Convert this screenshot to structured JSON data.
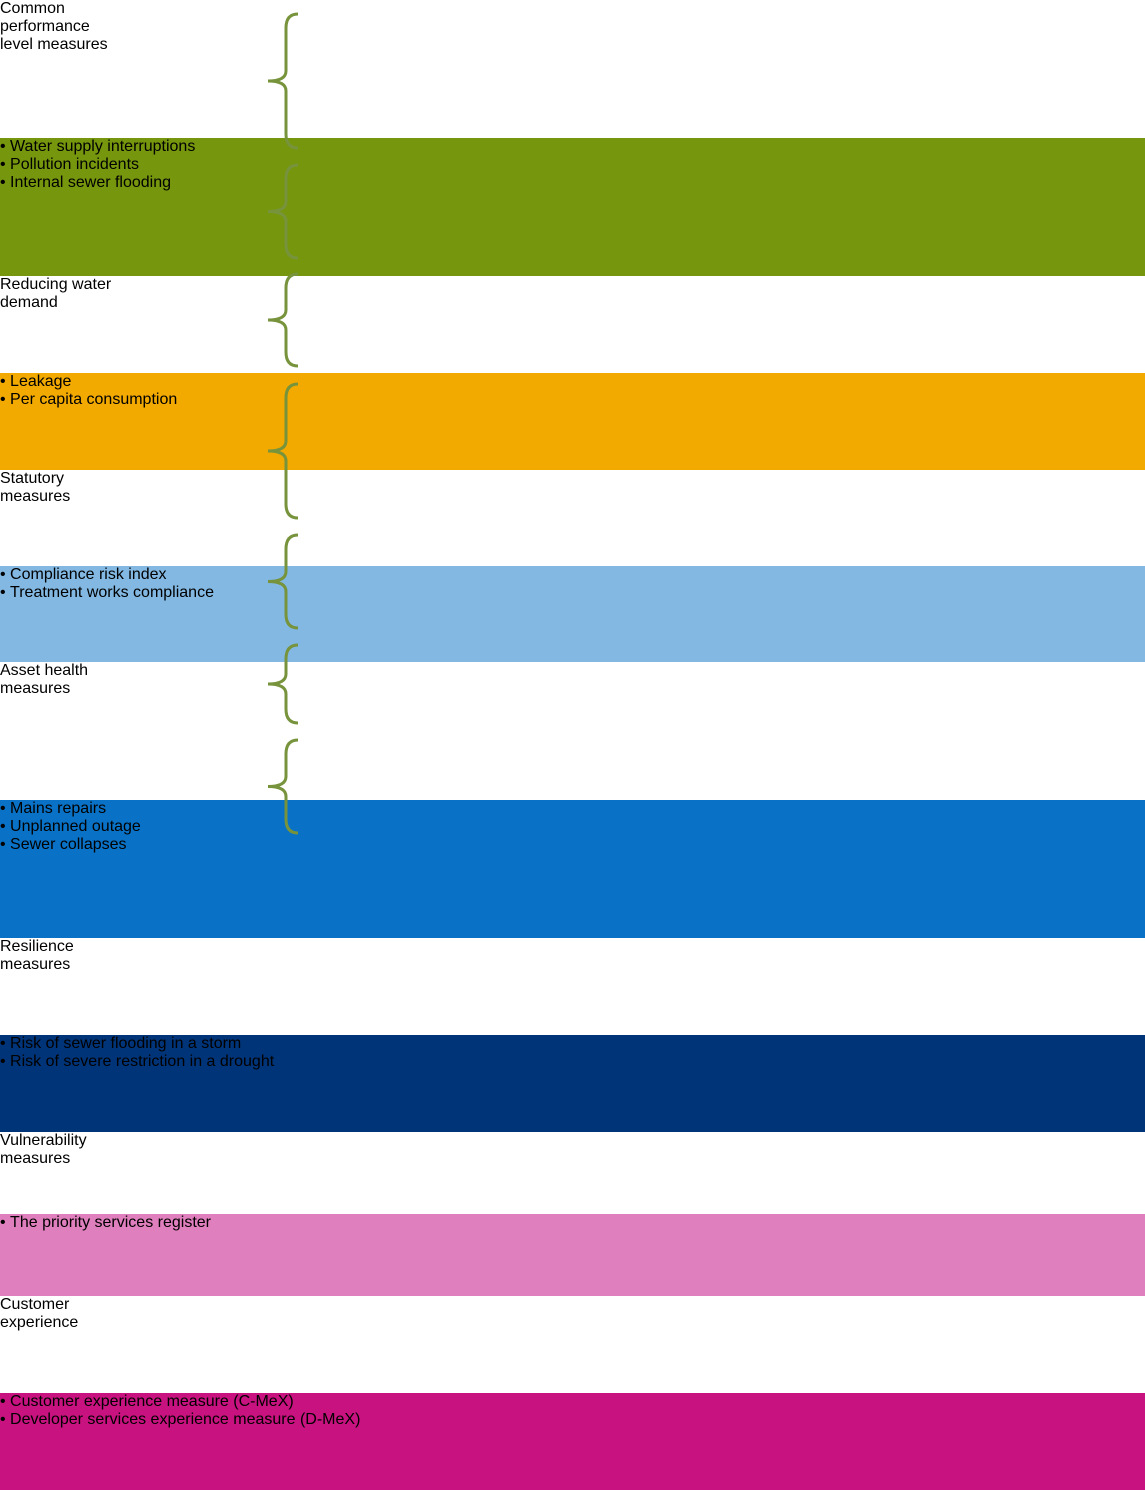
{
  "groups": [
    {
      "label": [
        "Common",
        "performance",
        "level measures"
      ],
      "items": [
        "Water supply interruptions",
        "Pollution incidents",
        "Internal sewer flooding"
      ]
    },
    {
      "label": [
        "Reducing water",
        "demand"
      ],
      "items": [
        "Leakage",
        "Per capita consumption"
      ]
    },
    {
      "label": [
        "Statutory",
        "measures"
      ],
      "items": [
        "Compliance risk index",
        "Treatment works compliance"
      ]
    },
    {
      "label": [
        "Asset health",
        "measures"
      ],
      "items": [
        "Mains repairs",
        "Unplanned outage",
        "Sewer collapses"
      ]
    },
    {
      "label": [
        "Resilience",
        "measures"
      ],
      "items": [
        "Risk of sewer flooding in a storm",
        "Risk of severe restriction in a drought"
      ]
    },
    {
      "label": [
        "Vulnerability",
        "measures"
      ],
      "items": [
        "The priority services register"
      ]
    },
    {
      "label": [
        "Customer",
        "experience"
      ],
      "items": [
        "Customer experience measure (C-MeX)",
        "Developer services experience measure (D-MeX)"
      ]
    }
  ]
}
